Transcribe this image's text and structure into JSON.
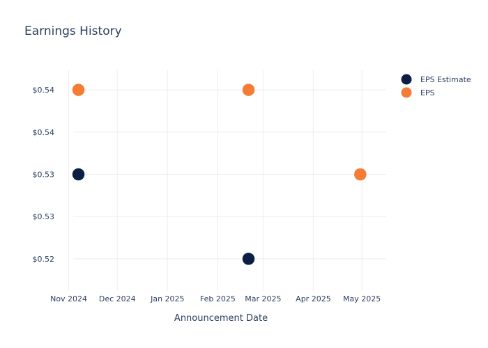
{
  "chart_data": {
    "type": "scatter",
    "title": "Earnings History",
    "xlabel": "Announcement Date",
    "ylabel": "",
    "x_ticks": [
      "Nov 2024",
      "Dec 2024",
      "Jan 2025",
      "Feb 2025",
      "Mar 2025",
      "Apr 2025",
      "May 2025"
    ],
    "x_tick_dates": [
      "2024-11-01",
      "2024-12-01",
      "2025-01-01",
      "2025-02-01",
      "2025-03-01",
      "2025-04-01",
      "2025-05-01"
    ],
    "xlim": [
      "2024-10-24",
      "2025-05-16"
    ],
    "y_ticks": [
      {
        "value": 0.52,
        "label": "$0.52"
      },
      {
        "value": 0.525,
        "label": "$0.53"
      },
      {
        "value": 0.53,
        "label": "$0.53"
      },
      {
        "value": 0.535,
        "label": "$0.54"
      },
      {
        "value": 0.54,
        "label": "$0.54"
      }
    ],
    "ylim": [
      0.5162,
      0.5424
    ],
    "grid": true,
    "legend": "top-right",
    "series": [
      {
        "name": "EPS Estimate",
        "color": "#0b1f45",
        "points": [
          {
            "x": "2024-11-07",
            "y": 0.53
          },
          {
            "x": "2025-02-20",
            "y": 0.52
          },
          {
            "x": "2025-04-30",
            "y": 0.53
          }
        ]
      },
      {
        "name": "EPS",
        "color": "#f47c34",
        "points": [
          {
            "x": "2024-11-07",
            "y": 0.54
          },
          {
            "x": "2025-02-20",
            "y": 0.54
          },
          {
            "x": "2025-04-30",
            "y": 0.53
          }
        ]
      }
    ]
  }
}
